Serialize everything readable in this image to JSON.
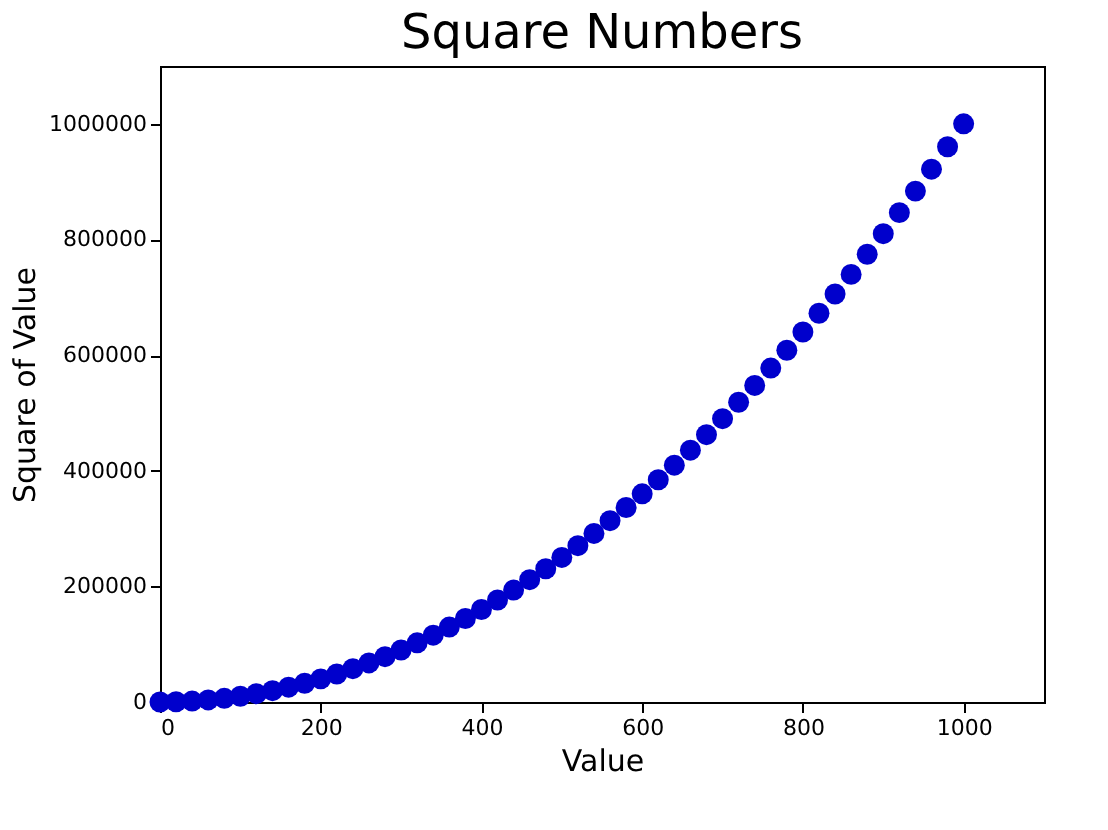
{
  "chart_data": {
    "type": "scatter",
    "title": "Square Numbers",
    "xlabel": "Value",
    "ylabel": "Square of Value",
    "x": [
      0,
      20,
      40,
      60,
      80,
      100,
      120,
      140,
      160,
      180,
      200,
      220,
      240,
      260,
      280,
      300,
      320,
      340,
      360,
      380,
      400,
      420,
      440,
      460,
      480,
      500,
      520,
      540,
      560,
      580,
      600,
      620,
      640,
      660,
      680,
      700,
      720,
      740,
      760,
      780,
      800,
      820,
      840,
      860,
      880,
      900,
      920,
      940,
      960,
      980,
      1000
    ],
    "series": [
      {
        "color": "#0000cc",
        "values": [
          0,
          400,
          1600,
          3600,
          6400,
          10000,
          14400,
          19600,
          25600,
          32400,
          40000,
          48400,
          57600,
          67600,
          78400,
          90000,
          102400,
          115600,
          129600,
          144400,
          160000,
          176400,
          193600,
          211600,
          230400,
          250000,
          270400,
          291600,
          313600,
          336400,
          360000,
          384400,
          409600,
          435600,
          462400,
          490000,
          518400,
          547600,
          577600,
          608400,
          640000,
          672400,
          705600,
          739600,
          774400,
          810000,
          846400,
          883600,
          921600,
          960400,
          1000000
        ]
      }
    ],
    "xlim": [
      0,
      1100
    ],
    "ylim": [
      0,
      1100000
    ],
    "xticks": [
      0,
      200,
      400,
      600,
      800,
      1000
    ],
    "yticks": [
      0,
      200000,
      400000,
      600000,
      800000,
      1000000
    ],
    "marker": "circle",
    "grid": false,
    "legend": false
  }
}
